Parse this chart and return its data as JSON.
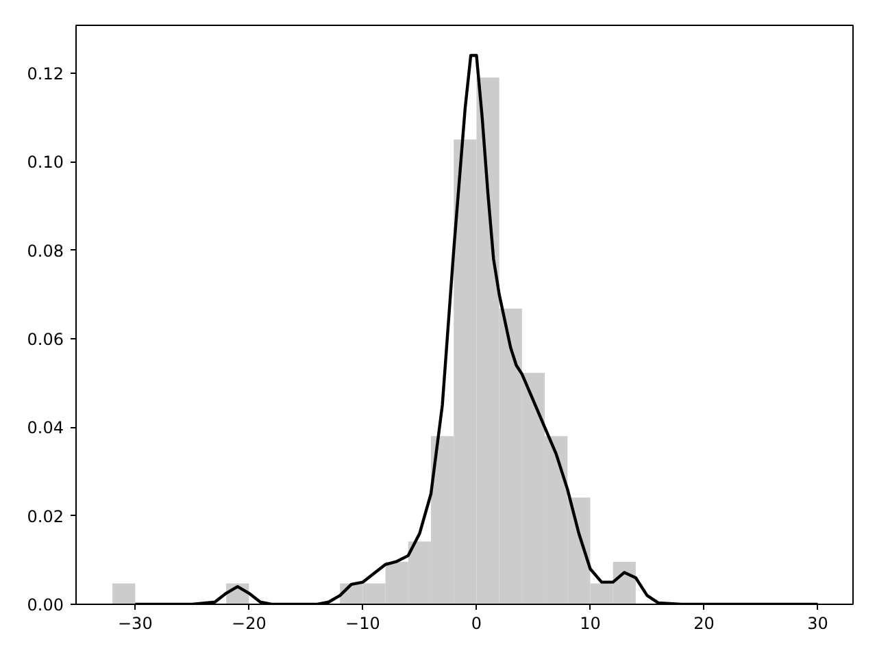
{
  "chart_data": {
    "type": "histogram",
    "bins": [
      -32,
      -30,
      -28,
      -26,
      -24,
      -22,
      -20,
      -18,
      -16,
      -14,
      -12,
      -10,
      -8,
      -6,
      -4,
      -2,
      0,
      2,
      4,
      6,
      8,
      10,
      12,
      14
    ],
    "values": [
      0.0047,
      0,
      0,
      0,
      0,
      0.0047,
      0,
      0,
      0,
      0,
      0.0047,
      0.0047,
      0.0096,
      0.0142,
      0.038,
      0.105,
      0.119,
      0.0668,
      0.0523,
      0.038,
      0.0241,
      0.0047,
      0.0096
    ],
    "color": "#cccccc",
    "series": [
      {
        "type": "line",
        "color": "#000000",
        "x": [
          -30,
          -25,
          -23,
          -22,
          -21,
          -20,
          -19,
          -18,
          -14,
          -13,
          -12,
          -11,
          -10,
          -9,
          -8,
          -7,
          -6,
          -5,
          -4,
          -3,
          -2,
          -1,
          -0.5,
          0,
          0.5,
          1,
          1.5,
          2,
          3,
          3.5,
          4,
          5,
          6,
          7,
          8,
          9,
          10,
          11,
          12,
          13,
          14,
          15,
          16,
          18,
          30
        ],
        "values": [
          0,
          0,
          0.0005,
          0.0025,
          0.004,
          0.0025,
          0.0005,
          0,
          0,
          0.0005,
          0.002,
          0.0045,
          0.005,
          0.007,
          0.009,
          0.0097,
          0.011,
          0.016,
          0.025,
          0.045,
          0.08,
          0.112,
          0.124,
          0.124,
          0.11,
          0.093,
          0.078,
          0.07,
          0.058,
          0.054,
          0.052,
          0.046,
          0.04,
          0.034,
          0.026,
          0.016,
          0.008,
          0.005,
          0.005,
          0.0072,
          0.006,
          0.002,
          0.0003,
          0,
          0
        ]
      }
    ],
    "xlim": [
      -35.2,
      33.1
    ],
    "ylim": [
      0,
      0.1308
    ],
    "xticks": [
      -30,
      -20,
      -10,
      0,
      10,
      20,
      30
    ],
    "yticks": [
      {
        "value": 0,
        "label": "0.00"
      },
      {
        "value": 0.02,
        "label": "0.02"
      },
      {
        "value": 0.04,
        "label": "0.04"
      },
      {
        "value": 0.06,
        "label": "0.06"
      },
      {
        "value": 0.08,
        "label": "0.08"
      },
      {
        "value": 0.1,
        "label": "0.10"
      },
      {
        "value": 0.12,
        "label": "0.12"
      }
    ],
    "grid": false
  }
}
